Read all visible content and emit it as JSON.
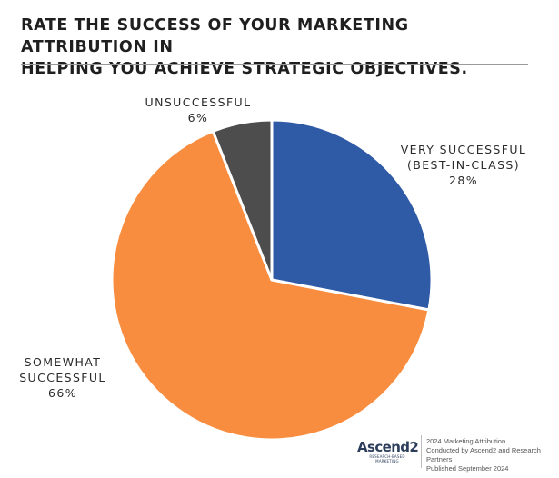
{
  "title_lines": [
    "RATE THE SUCCESS OF YOUR MARKETING ATTRIBUTION IN",
    "HELPING YOU ACHIEVE STRATEGIC OBJECTIVES."
  ],
  "chart_data": {
    "type": "pie",
    "title": "RATE THE SUCCESS OF YOUR MARKETING ATTRIBUTION IN HELPING YOU ACHIEVE STRATEGIC OBJECTIVES.",
    "slices": [
      {
        "label_lines": [
          "VERY SUCCESSFUL",
          "(BEST-IN-CLASS)"
        ],
        "value": 28,
        "value_label": "28%",
        "color": "#2f5aa6"
      },
      {
        "label_lines": [
          "SOMEWHAT",
          "SUCCESSFUL"
        ],
        "value": 66,
        "value_label": "66%",
        "color": "#f98d3f"
      },
      {
        "label_lines": [
          "UNSUCCESSFUL"
        ],
        "value": 6,
        "value_label": "6%",
        "color": "#4d4d4d"
      }
    ],
    "start": "top (12 o'clock)",
    "direction": "clockwise"
  },
  "footer": {
    "logo_text": "Ascend2",
    "logo_tagline": "RESEARCH-BASED MARKETING",
    "lines": [
      "2024 Marketing Attribution",
      "Conducted by Ascend2 and Research Partners",
      "Published September 2024"
    ]
  }
}
